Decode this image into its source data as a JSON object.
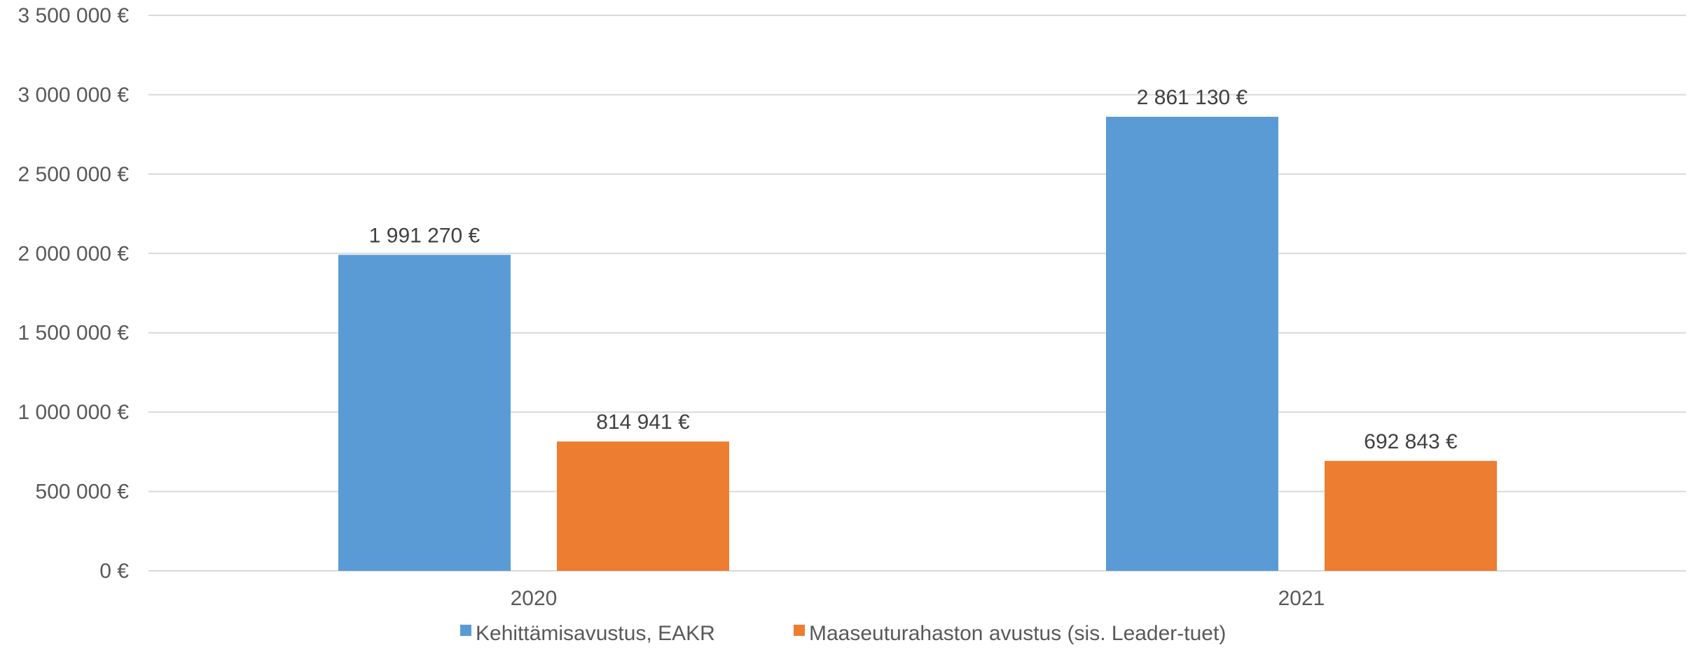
{
  "chart_data": {
    "type": "bar",
    "categories": [
      "2020",
      "2021"
    ],
    "series": [
      {
        "name": "Kehittämisavustus, EAKR",
        "values": [
          1991270,
          2861130
        ],
        "labels": [
          "1 991 270 €",
          "2 861 130 €"
        ],
        "color": "#5B9BD5"
      },
      {
        "name": "Maaseuturahaston avustus (sis. Leader-tuet)",
        "values": [
          814941,
          692843
        ],
        "labels": [
          "814 941 €",
          "692 843 €"
        ],
        "color": "#ED7D31"
      }
    ],
    "ylim": [
      0,
      3500000
    ],
    "yticks": [
      0,
      500000,
      1000000,
      1500000,
      2000000,
      2500000,
      3000000,
      3500000
    ],
    "ytick_labels": [
      "0 €",
      "500 000 €",
      "1 000 000 €",
      "1 500 000 €",
      "2 000 000 €",
      "2 500 000 €",
      "3 000 000 €",
      "3 500 000 €"
    ],
    "title": "",
    "xlabel": "",
    "ylabel": "",
    "grid": true,
    "legend_position": "bottom"
  }
}
